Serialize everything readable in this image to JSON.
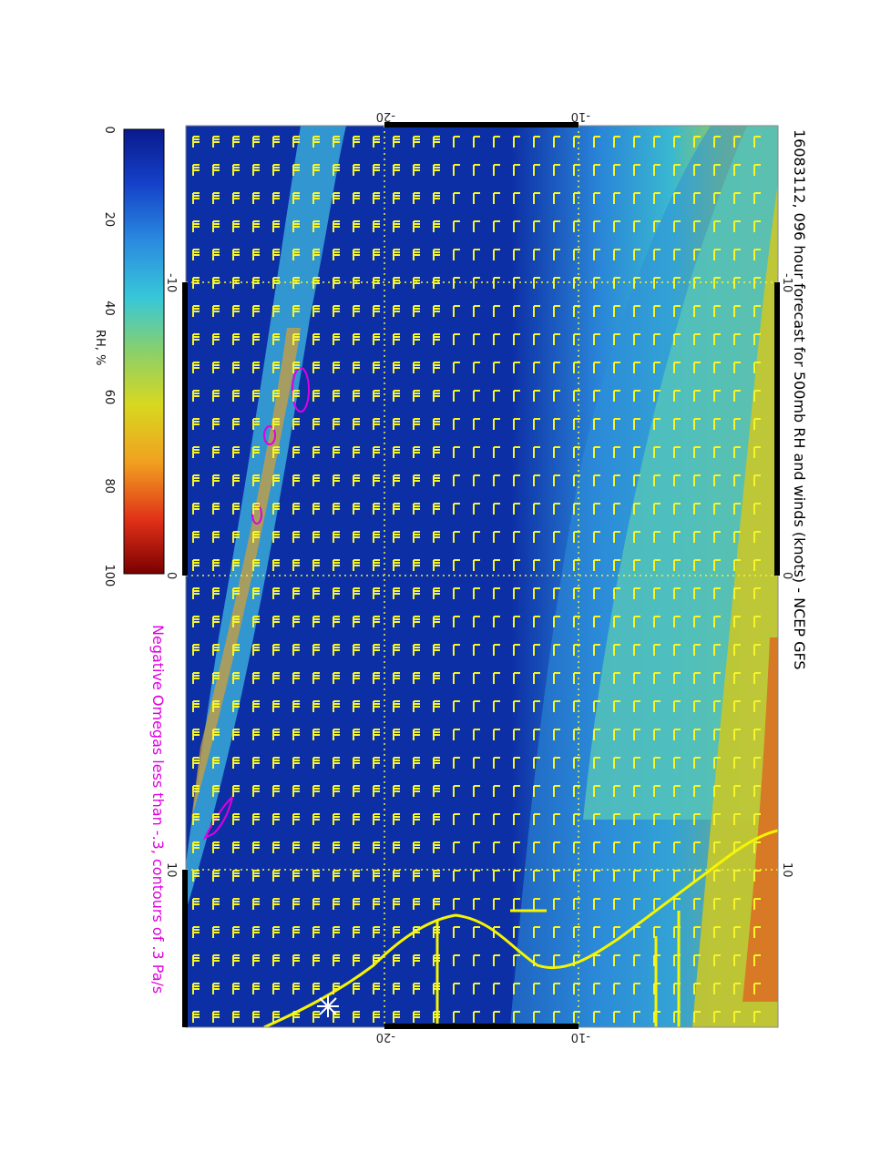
{
  "title": "16083112, 096 hour forecast for 500mb RH and winds (knots) - NCEP GFS",
  "note": "Negative Omegas less than -.3, contours of .3 Pa/s",
  "colorbar": {
    "label": "RH, %",
    "ticks": [
      "0",
      "20",
      "40",
      "60",
      "80",
      "100"
    ],
    "colors": [
      "#0a1a8c",
      "#1440c8",
      "#2a8ae0",
      "#38c8d8",
      "#8ad06a",
      "#d8d820",
      "#f0a020",
      "#e03018",
      "#7a0000"
    ]
  },
  "axes": {
    "top_ticks": [
      "-20",
      "-10"
    ],
    "bottom_ticks": [
      "-20",
      "-10"
    ],
    "left_ticks": [
      "-10",
      "0",
      "10"
    ],
    "right_ticks": [
      "-10",
      "0",
      "10"
    ]
  },
  "colors": {
    "barb": "#f5f52a",
    "coast": "#f5f500",
    "omega_contour": "#e000e0",
    "grid": "#f5f52a"
  }
}
